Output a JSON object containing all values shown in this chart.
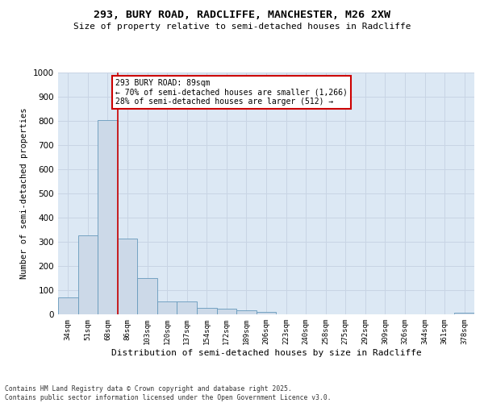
{
  "title_line1": "293, BURY ROAD, RADCLIFFE, MANCHESTER, M26 2XW",
  "title_line2": "Size of property relative to semi-detached houses in Radcliffe",
  "xlabel": "Distribution of semi-detached houses by size in Radcliffe",
  "ylabel": "Number of semi-detached properties",
  "categories": [
    "34sqm",
    "51sqm",
    "68sqm",
    "86sqm",
    "103sqm",
    "120sqm",
    "137sqm",
    "154sqm",
    "172sqm",
    "189sqm",
    "206sqm",
    "223sqm",
    "240sqm",
    "258sqm",
    "275sqm",
    "292sqm",
    "309sqm",
    "326sqm",
    "344sqm",
    "361sqm",
    "378sqm"
  ],
  "values": [
    70,
    328,
    805,
    315,
    150,
    55,
    52,
    28,
    22,
    17,
    11,
    0,
    0,
    0,
    0,
    0,
    0,
    0,
    0,
    0,
    8
  ],
  "bar_color": "#ccd9e8",
  "bar_edge_color": "#6699bb",
  "subject_line_index": 2,
  "subject_line_color": "#cc0000",
  "annotation_line1": "293 BURY ROAD: 89sqm",
  "annotation_line2": "← 70% of semi-detached houses are smaller (1,266)",
  "annotation_line3": "28% of semi-detached houses are larger (512) →",
  "annotation_box_color": "#cc0000",
  "ylim": [
    0,
    1000
  ],
  "yticks": [
    0,
    100,
    200,
    300,
    400,
    500,
    600,
    700,
    800,
    900,
    1000
  ],
  "grid_color": "#c8d4e4",
  "bg_color": "#dce8f4",
  "footer_line1": "Contains HM Land Registry data © Crown copyright and database right 2025.",
  "footer_line2": "Contains public sector information licensed under the Open Government Licence v3.0."
}
